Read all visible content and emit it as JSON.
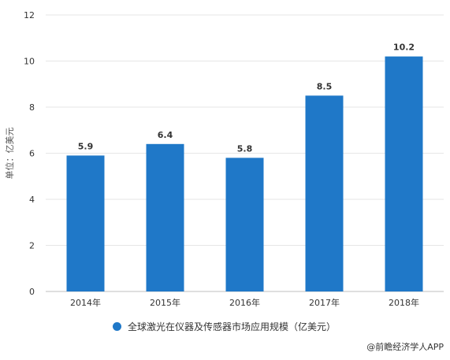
{
  "chart_data": {
    "type": "bar",
    "categories": [
      "2014年",
      "2015年",
      "2016年",
      "2017年",
      "2018年"
    ],
    "series": [
      {
        "name": "全球激光在仪器及传感器市场应用规模（亿美元）",
        "values": [
          5.9,
          6.4,
          5.8,
          8.5,
          10.2
        ]
      }
    ],
    "data_labels": [
      "5.9",
      "6.4",
      "5.8",
      "8.5",
      "10.2"
    ],
    "ylabel": "单位：亿美元",
    "xlabel": "",
    "ylim": [
      0,
      12
    ],
    "yticks": [
      0,
      2,
      4,
      6,
      8,
      10,
      12
    ],
    "grid": true,
    "legend_position": "bottom",
    "bar_color": "#1f78c8"
  },
  "source_text": "@前瞻经济学人APP"
}
